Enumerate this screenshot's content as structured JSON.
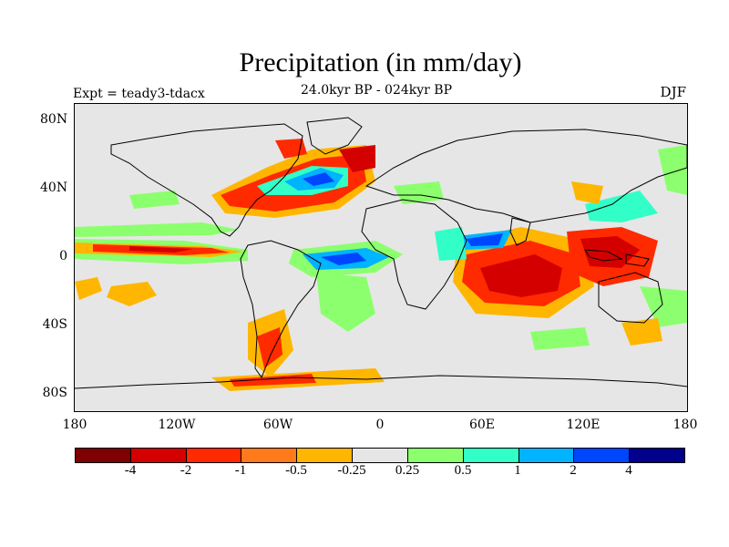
{
  "title": "Precipitation (in mm/day)",
  "subtitle": "24.0kyr BP - 024kyr BP",
  "expt_label": "Expt = teady3-tdacx",
  "season": "DJF",
  "lat_labels": [
    "80N",
    "40N",
    "0",
    "40S",
    "80S"
  ],
  "lon_labels": [
    "180",
    "120W",
    "60W",
    "0",
    "60E",
    "120E",
    "180"
  ],
  "colorbar": {
    "colors": [
      "#7f0000",
      "#d40000",
      "#ff2a00",
      "#ff7a1a",
      "#ffb600",
      "#e6e6e6",
      "#8cff6e",
      "#32ffc8",
      "#00b4ff",
      "#0046ff",
      "#00008c"
    ],
    "labels": [
      "-4",
      "-2",
      "-1",
      "-0.5",
      "-0.25",
      "0.25",
      "0.5",
      "1",
      "2",
      "4"
    ]
  },
  "colors": {
    "land_line": "#000000",
    "background": "#e6e6e6"
  }
}
